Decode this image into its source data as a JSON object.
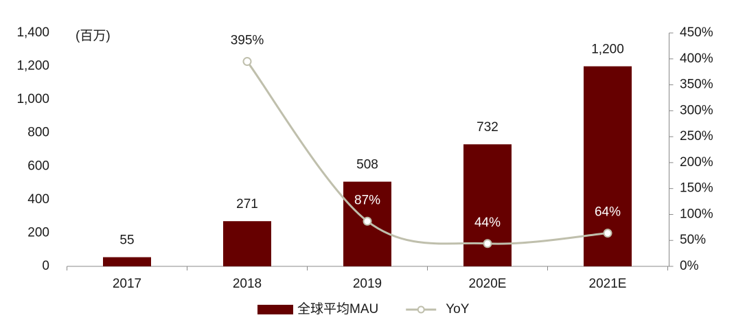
{
  "chart_data": {
    "type": "bar",
    "y_label": "(百万)",
    "categories": [
      "2017",
      "2018",
      "2019",
      "2020E",
      "2021E"
    ],
    "series": [
      {
        "name": "全球平均MAU",
        "type": "bar",
        "color": "#660000",
        "values": [
          55,
          271,
          508,
          732,
          1200
        ],
        "value_labels": [
          "55",
          "271",
          "508",
          "732",
          "1,200"
        ]
      },
      {
        "name": "YoY",
        "type": "line",
        "axis": "y2",
        "color": "#bfbfac",
        "values": [
          null,
          395,
          87,
          44,
          64
        ],
        "value_labels": [
          null,
          "395%",
          "87%",
          "44%",
          "64%"
        ]
      }
    ],
    "ylim": [
      0,
      1400
    ],
    "yticks": [
      0,
      200,
      400,
      600,
      800,
      {
        "value": 1000,
        "label": "1,000"
      },
      {
        "value": 1200,
        "label": "1,200"
      },
      {
        "value": 1400,
        "label": "1,400"
      }
    ],
    "y2lim": [
      0,
      450
    ],
    "y2ticks": [
      {
        "value": 0,
        "label": "0%"
      },
      {
        "value": 50,
        "label": "50%"
      },
      {
        "value": 100,
        "label": "100%"
      },
      {
        "value": 150,
        "label": "150%"
      },
      {
        "value": 200,
        "label": "200%"
      },
      {
        "value": 250,
        "label": "250%"
      },
      {
        "value": 300,
        "label": "300%"
      },
      {
        "value": 350,
        "label": "350%"
      },
      {
        "value": 400,
        "label": "400%"
      },
      {
        "value": 450,
        "label": "450%"
      }
    ],
    "grid": false,
    "legend": "bottom"
  }
}
